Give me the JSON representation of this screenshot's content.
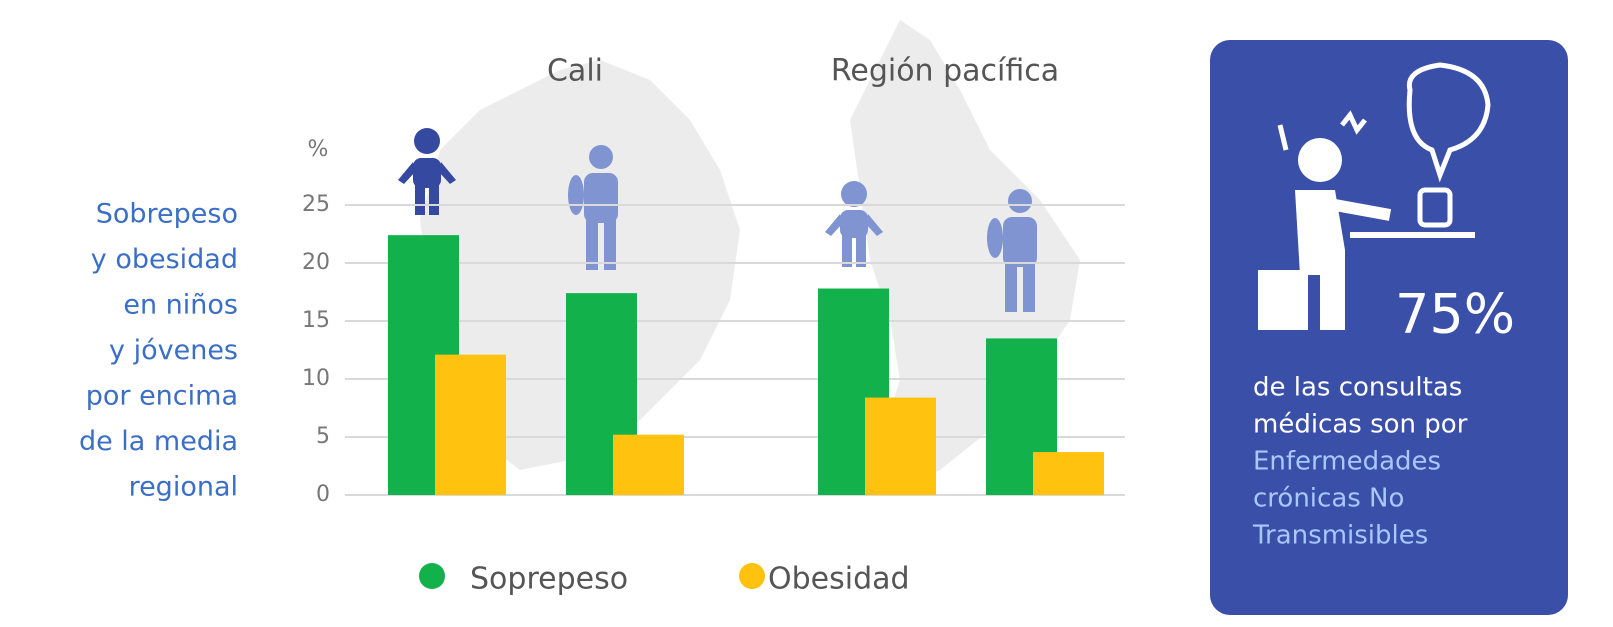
{
  "chart_data": {
    "type": "bar",
    "groups": [
      "Cali",
      "Región pacífica"
    ],
    "categories": [
      null,
      null,
      null,
      null
    ],
    "series": [
      {
        "name": "Soprepeso",
        "color": "#13b14b",
        "values": [
          22.4,
          17.4,
          17.8,
          13.5
        ]
      },
      {
        "name": "Obesidad",
        "color": "#ffc20e",
        "values": [
          12.1,
          5.2,
          8.4,
          3.7
        ]
      }
    ],
    "y_axis_label": "%",
    "ylim": [
      0,
      25
    ],
    "yticks": [
      0,
      5,
      10,
      15,
      20,
      25
    ],
    "grid": true,
    "side_text": [
      "Sobrepeso",
      "y obesidad",
      "en niños",
      "y jóvenes",
      "por encima",
      "de la media",
      "regional"
    ],
    "callout": {
      "headline": "75%",
      "lines": [
        "de las consultas",
        "médicas son por"
      ],
      "highlight_lines": [
        "Enfermedades",
        "crónicas  No",
        "Transmisibles"
      ]
    }
  }
}
